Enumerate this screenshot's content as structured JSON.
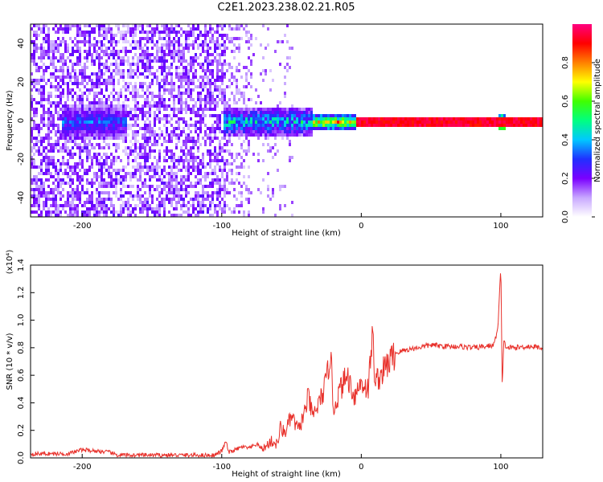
{
  "page_title": "C2E1.2023.238.02.21.R05",
  "chart_data": [
    {
      "type": "heatmap",
      "xlabel": "Height of straight line (km)",
      "ylabel": "Frequency (Hz)",
      "xlim": [
        -237,
        130
      ],
      "ylim": [
        -50,
        50
      ],
      "x_ticks": [
        "-200",
        "-100",
        "0",
        "100"
      ],
      "y_ticks": [
        "40",
        "20",
        "0",
        "-20",
        "-40"
      ],
      "colorbar": {
        "label": "Normalized spectral amplitude",
        "range": [
          0.0,
          1.0
        ],
        "ticks": [
          "0.0",
          "0.2",
          "0.4",
          "0.6",
          "0.8"
        ],
        "colors": [
          "#ffffff",
          "#c8a8ff",
          "#7a00ff",
          "#2030ff",
          "#00c8ff",
          "#00ff80",
          "#40ff00",
          "#ffff00",
          "#ff8000",
          "#ff0000",
          "#ff0080"
        ]
      },
      "features": [
        {
          "x_range": [
            -237,
            -100
          ],
          "description_value": "broadband noise 0.1-0.25"
        },
        {
          "x_range": [
            -215,
            -170
          ],
          "peak_freq": 0,
          "amplitude": 0.3
        },
        {
          "x_range": [
            -100,
            -35
          ],
          "peak_freq": 0,
          "amplitude": 0.4
        },
        {
          "x_range": [
            -35,
            130
          ],
          "peak_freq": 0,
          "amplitude": 0.95
        }
      ]
    },
    {
      "type": "line",
      "xlabel": "Height of straight line (km)",
      "ylabel": "SNR (10 * v/v)",
      "multiplier": "(x10⁴)",
      "xlim": [
        -237,
        130
      ],
      "ylim": [
        0,
        1.4
      ],
      "x_ticks": [
        "-200",
        "-100",
        "0",
        "100"
      ],
      "y_ticks": [
        "0.0",
        "0.2",
        "0.4",
        "0.6",
        "0.8",
        "1.0",
        "1.2",
        "1.4"
      ],
      "line_color": "#e8302a",
      "series": [
        {
          "x": [
            -237,
            -210,
            -200,
            -190,
            -180,
            -175,
            -150,
            -120,
            -105,
            -100,
            -97,
            -95,
            -90,
            -85,
            -80,
            -75,
            -70,
            -65,
            -60,
            -58,
            -55,
            -50,
            -45,
            -40,
            -38,
            -35,
            -30,
            -25,
            -22,
            -20,
            -15,
            -10,
            -5,
            0,
            5,
            8,
            10,
            15,
            20,
            25,
            30,
            40,
            50,
            60,
            70,
            80,
            90,
            95,
            98,
            100,
            101,
            102,
            104,
            110,
            120,
            130
          ],
          "y": [
            0.03,
            0.03,
            0.06,
            0.05,
            0.04,
            0.02,
            0.02,
            0.02,
            0.02,
            0.05,
            0.12,
            0.04,
            0.06,
            0.08,
            0.07,
            0.1,
            0.06,
            0.12,
            0.1,
            0.22,
            0.18,
            0.3,
            0.2,
            0.35,
            0.45,
            0.3,
            0.4,
            0.55,
            0.78,
            0.35,
            0.5,
            0.6,
            0.45,
            0.55,
            0.5,
            0.9,
            0.55,
            0.62,
            0.7,
            0.76,
            0.78,
            0.8,
            0.82,
            0.81,
            0.81,
            0.8,
            0.81,
            0.82,
            0.95,
            1.4,
            0.5,
            0.85,
            0.8,
            0.8,
            0.81,
            0.8
          ]
        }
      ]
    }
  ]
}
